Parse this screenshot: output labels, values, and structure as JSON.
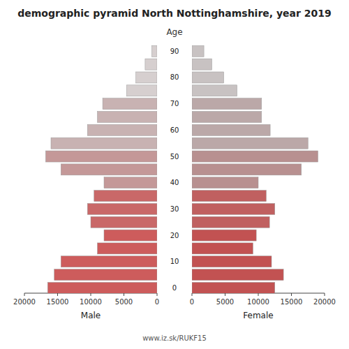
{
  "chart_data": {
    "type": "pyramid",
    "orientation": "horizontal",
    "title": "demographic pyramid North Nottinghamshire, year 2019",
    "ylabel": "Age",
    "categories": [
      "0",
      null,
      "10",
      null,
      "20",
      null,
      "30",
      null,
      "40",
      null,
      "50",
      null,
      "60",
      null,
      "70",
      null,
      "80",
      null,
      "90"
    ],
    "series": [
      {
        "name": "Male",
        "values": [
          16500,
          15500,
          14500,
          9000,
          8000,
          10000,
          10500,
          9500,
          8000,
          14500,
          16800,
          16000,
          10500,
          9000,
          8200,
          4600,
          3200,
          1800,
          800
        ],
        "colors": [
          "#cd5c5c",
          "#cd5c5c",
          "#cd5c5c",
          "#cd5c5c",
          "#cd5c5c",
          "#c96868",
          "#c96868",
          "#c96868",
          "#c49898",
          "#c49898",
          "#c49898",
          "#c8b2b2",
          "#c8b2b2",
          "#c8b2b2",
          "#c8b2b2",
          "#d6cfcf",
          "#d6cfcf",
          "#d6cfcf",
          "#d6cfcf"
        ]
      },
      {
        "name": "Female",
        "values": [
          12500,
          13800,
          12000,
          9200,
          9700,
          11700,
          12500,
          11200,
          10000,
          16500,
          19000,
          17500,
          11800,
          10500,
          10500,
          6800,
          4800,
          3000,
          1800
        ],
        "colors": [
          "#c25252",
          "#c25252",
          "#c25252",
          "#c25252",
          "#c25252",
          "#c06060",
          "#c06060",
          "#c06060",
          "#b89090",
          "#b89090",
          "#b89090",
          "#bba8a8",
          "#bba8a8",
          "#bba8a8",
          "#bba8a8",
          "#c8c2c2",
          "#c8c2c2",
          "#c8c2c2",
          "#c8c2c2"
        ]
      }
    ],
    "xlim": [
      0,
      20000
    ],
    "xticks": [
      0,
      5000,
      10000,
      15000,
      20000
    ],
    "grid": false,
    "annotations": [
      "www.iz.sk/RUKF15"
    ]
  }
}
